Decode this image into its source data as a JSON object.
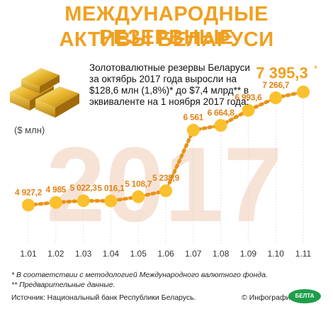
{
  "title": {
    "line1": "МЕЖДУНАРОДНЫЕ РЕЗЕРВНЫЕ",
    "line2": "АКТИВЫ БЕЛАРУСИ"
  },
  "description": "Золотовалютные резервы Беларуси за октябрь 2017 года выросли на $128,6 млн (1,8%)* до $7,4 млрд** в эквиваленте на 1 ноября 2017 года:",
  "unit_label": "($ млн)",
  "background_year": "2017",
  "notes": {
    "n1": "* В соответствии с методологией Международного валютного фонда.",
    "n2": "** Предварительные данные."
  },
  "source": "Источник: Национальный банк Республики Беларусь.",
  "credit": "© Инфографика",
  "logo_text": "БЕЛТА",
  "colors": {
    "accent": "#f0a020",
    "line": "#e89318",
    "marker": "#fbc02d",
    "watermark": "#f6e3d6",
    "grid": "#cccccc"
  },
  "chart_data": {
    "type": "line",
    "categories": [
      "1.01",
      "1.02",
      "1.03",
      "1.04",
      "1.05",
      "1.06",
      "1.07",
      "1.08",
      "1.09",
      "1.10",
      "1.11"
    ],
    "values": [
      4927.2,
      4985,
      5022.3,
      5016.1,
      5108.7,
      5238.9,
      6561,
      6664.8,
      6993.6,
      7266.7,
      7395.3
    ],
    "labels": [
      "4 927,2",
      "4 985",
      "5 022,3",
      "5 016,1",
      "5 108,7",
      "5 238,9",
      "6 561",
      "6 664,8",
      "6 993,6",
      "7 266,7",
      "7 395,3"
    ],
    "last_label_suffix": "*",
    "ylim": [
      4500,
      7700
    ],
    "grid": true,
    "grid_style": "dotted vertical"
  }
}
